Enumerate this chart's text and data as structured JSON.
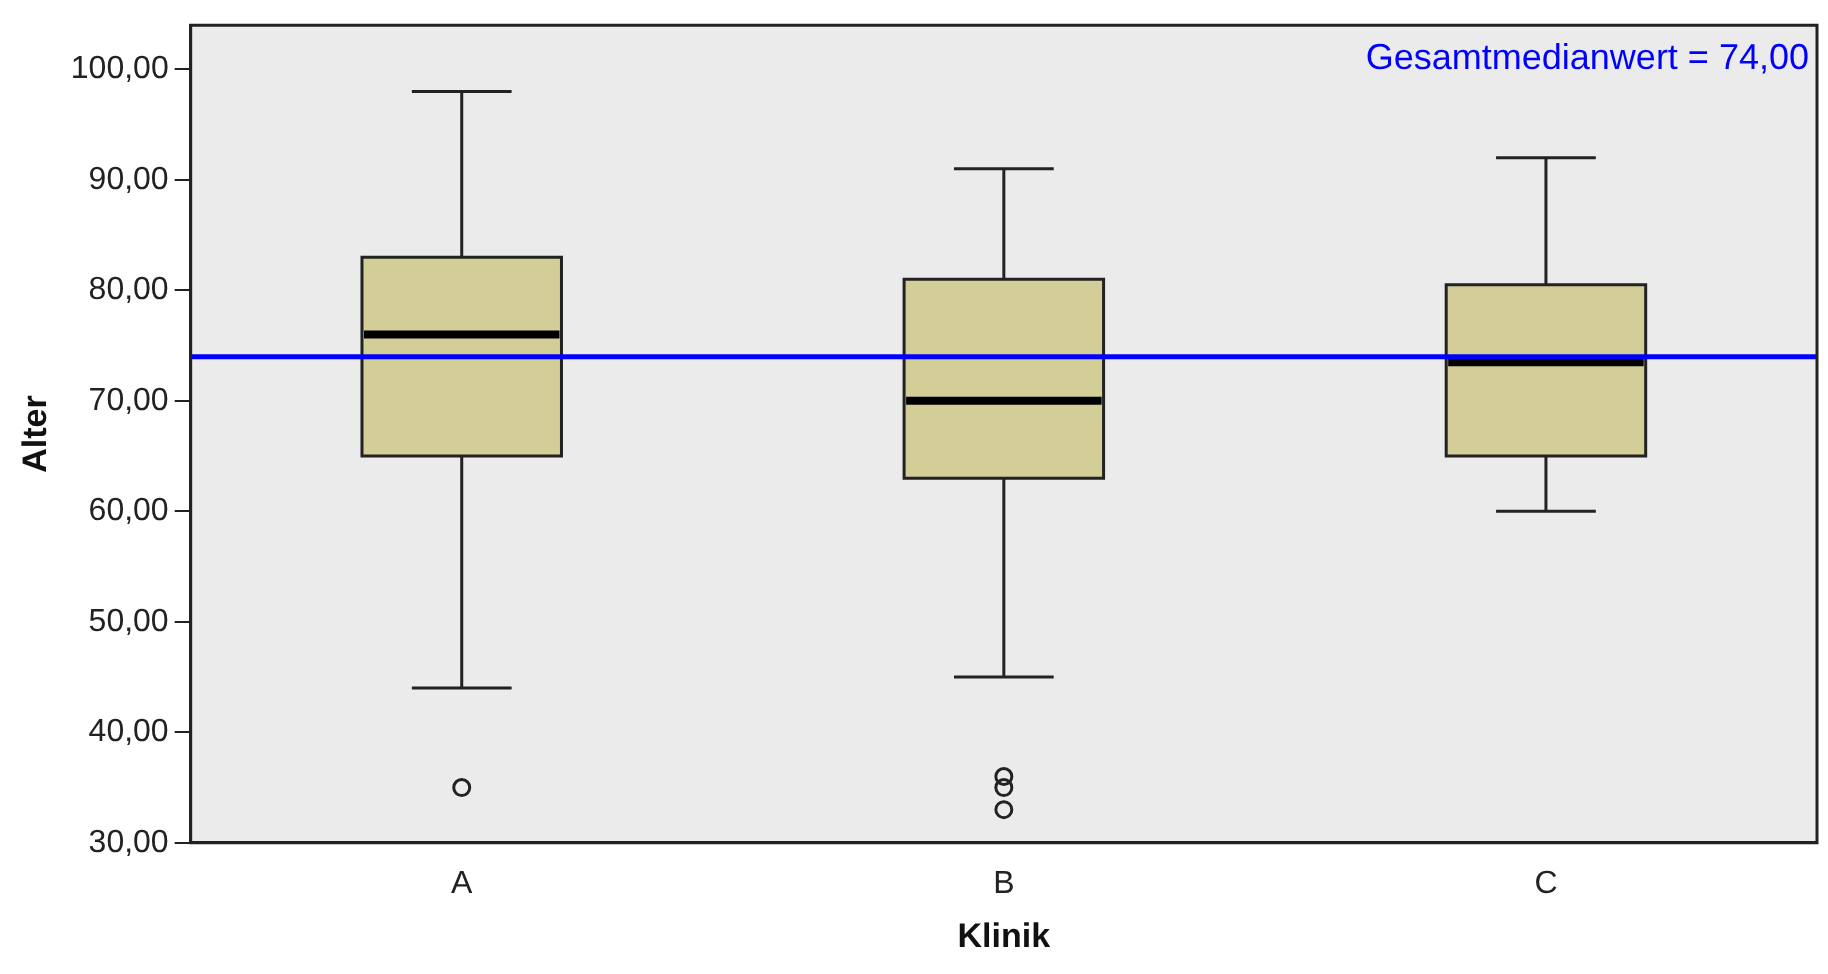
{
  "chart_data": {
    "type": "box",
    "xlabel": "Klinik",
    "ylabel": "Alter",
    "categories": [
      "A",
      "B",
      "C"
    ],
    "color": "#d3cd98",
    "boxes": [
      {
        "low": 44,
        "q1": 65,
        "median": 76,
        "q3": 83,
        "high": 98,
        "outliers": [
          35
        ]
      },
      {
        "low": 45,
        "q1": 63,
        "median": 70,
        "q3": 81,
        "high": 91,
        "outliers": [
          36,
          35,
          33
        ]
      },
      {
        "low": 60,
        "q1": 65,
        "median": 73.5,
        "q3": 80.5,
        "high": 92
      }
    ],
    "ylim": [
      30,
      104
    ],
    "yticks": [
      {
        "value": 30,
        "label": "30,00"
      },
      {
        "value": 40,
        "label": "40,00"
      },
      {
        "value": 50,
        "label": "50,00"
      },
      {
        "value": 60,
        "label": "60,00"
      },
      {
        "value": 70,
        "label": "70,00"
      },
      {
        "value": 80,
        "label": "80,00"
      },
      {
        "value": 90,
        "label": "90,00"
      },
      {
        "value": 100,
        "label": "100,00"
      }
    ],
    "ref_lines": [
      {
        "axis": "y",
        "value": 74,
        "label": "Gesamtmedianwert = 74,00",
        "color": "#0000ff"
      }
    ],
    "grid": false,
    "legend": false
  }
}
